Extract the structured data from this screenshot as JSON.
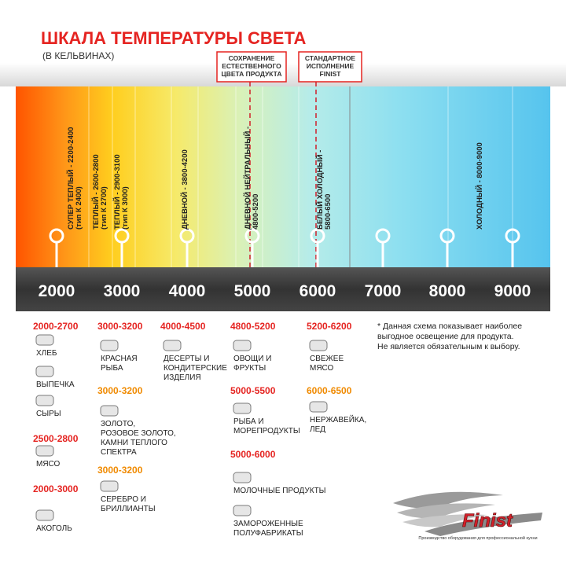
{
  "header": {
    "title": "ШКАЛА ТЕМПЕРАТУРЫ СВЕТА",
    "subtitle": "(В КЕЛЬВИНАХ)"
  },
  "callouts": [
    {
      "lines": [
        "СОХРАНЕНИЕ",
        "ЕСТЕСТВЕННОГО",
        "ЦВЕТА ПРОДУКТА"
      ]
    },
    {
      "lines": [
        "СТАНДАРТНОЕ",
        "ИСПОЛНЕНИЕ",
        "FINIST"
      ]
    }
  ],
  "scale": {
    "ticks": [
      "2000",
      "3000",
      "4000",
      "5000",
      "6000",
      "7000",
      "8000",
      "9000"
    ],
    "bands": [
      [
        "СУПЕР ТЕПЛЫЙ - 2200-2400",
        "(тип К 2400)"
      ],
      [
        "ТЕПЛЫЙ - 2600-2800",
        "(тип К 2700)"
      ],
      [
        "ТЕПЛЫЙ - 2900-3100",
        "(тип К 3000)"
      ],
      [
        "ДНЕВНОЙ - 3800-4200"
      ],
      [
        "ДНЕВНОЙ НЕЙТРАЛЬНЫЙ -",
        "4800-5200"
      ],
      [
        "БЕЛЫЙ ХОЛОДНЫЙ -",
        "5800-6500"
      ],
      [
        "ХОЛОДНЫЙ - 8000-9000"
      ]
    ]
  },
  "groups": [
    {
      "range": "2000-2700",
      "color": "#e52421",
      "items": [
        [
          "ХЛЕБ"
        ],
        [
          "ВЫПЕЧКА"
        ],
        [
          "СЫРЫ"
        ]
      ]
    },
    {
      "range": "2500-2800",
      "color": "#e52421",
      "items": [
        [
          "МЯСО"
        ]
      ]
    },
    {
      "range": "2000-3000",
      "color": "#e52421",
      "items": [
        [
          "АКОГОЛЬ"
        ]
      ]
    },
    {
      "range": "3000-3200",
      "color": "#e52421",
      "items": [
        [
          "КРАСНАЯ",
          "РЫБА"
        ]
      ]
    },
    {
      "range": "3000-3200",
      "color": "#f08a00",
      "items": [
        [
          "ЗОЛОТО,",
          "РОЗОВОЕ ЗОЛОТО,",
          "КАМНИ ТЕПЛОГО",
          "СПЕКТРА"
        ]
      ]
    },
    {
      "range": "3000-3200",
      "color": "#f08a00",
      "items": [
        [
          "СЕРЕБРО И",
          "БРИЛЛИАНТЫ"
        ]
      ]
    },
    {
      "range": "4000-4500",
      "color": "#e52421",
      "items": [
        [
          "ДЕСЕРТЫ И",
          "КОНДИТЕРСКИЕ",
          "ИЗДЕЛИЯ"
        ]
      ]
    },
    {
      "range": "4800-5200",
      "color": "#e52421",
      "items": [
        [
          "ОВОЩИ И",
          "ФРУКТЫ"
        ]
      ]
    },
    {
      "range": "5000-5500",
      "color": "#e52421",
      "items": [
        [
          "РЫБА И",
          "МОРЕПРОДУКТЫ"
        ]
      ]
    },
    {
      "range": "5000-6000",
      "color": "#e52421",
      "items": [
        [
          "МОЛОЧНЫЕ ПРОДУКТЫ"
        ],
        [
          "ЗАМОРОЖЕННЫЕ",
          "ПОЛУФАБРИКАТЫ"
        ]
      ]
    },
    {
      "range": "5200-6200",
      "color": "#e52421",
      "items": [
        [
          "СВЕЖЕЕ",
          "МЯСО"
        ]
      ]
    },
    {
      "range": "6000-6500",
      "color": "#f08a00",
      "items": [
        [
          "НЕРЖАВЕЙКА,",
          "ЛЕД"
        ]
      ]
    }
  ],
  "note": [
    "* Данная схема показывает наиболее",
    "выгодное освещение для продукта.",
    "Не является обязательным к выбору."
  ],
  "logo": {
    "name": "Finist",
    "tagline": "Производство оборудования для профессиональной кухни"
  }
}
